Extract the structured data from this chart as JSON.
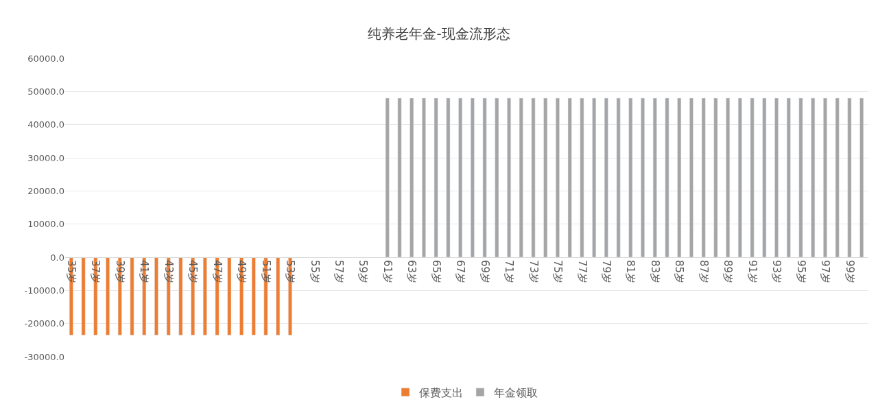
{
  "chart_data": {
    "type": "bar",
    "title": "纯养老年金-现金流形态",
    "categories": [
      "35岁",
      null,
      "37岁",
      null,
      "39岁",
      null,
      "41岁",
      null,
      "43岁",
      null,
      "45岁",
      null,
      "47岁",
      null,
      "49岁",
      null,
      "51岁",
      null,
      "53岁",
      null,
      "55岁",
      null,
      "57岁",
      null,
      "59岁",
      null,
      "61岁",
      null,
      "63岁",
      null,
      "65岁",
      null,
      "67岁",
      null,
      "69岁",
      null,
      "71岁",
      null,
      "73岁",
      null,
      "75岁",
      null,
      "77岁",
      null,
      "79岁",
      null,
      "81岁",
      null,
      "83岁",
      null,
      "85岁",
      null,
      "87岁",
      null,
      "89岁",
      null,
      "91岁",
      null,
      "93岁",
      null,
      "95岁",
      null,
      "97岁",
      null,
      "99岁",
      null
    ],
    "series": [
      {
        "name": "保费支出",
        "color": "#ed7d31",
        "values": [
          -23500,
          -23500,
          -23500,
          -23500,
          -23500,
          -23500,
          -23500,
          -23500,
          -23500,
          -23500,
          -23500,
          -23500,
          -23500,
          -23500,
          -23500,
          -23500,
          -23500,
          -23500,
          -23500,
          null,
          null,
          null,
          null,
          null,
          null,
          null,
          null,
          null,
          null,
          null,
          null,
          null,
          null,
          null,
          null,
          null,
          null,
          null,
          null,
          null,
          null,
          null,
          null,
          null,
          null,
          null,
          null,
          null,
          null,
          null,
          null,
          null,
          null,
          null,
          null,
          null,
          null,
          null,
          null,
          null,
          null,
          null,
          null,
          null,
          null,
          null
        ]
      },
      {
        "name": "年金领取",
        "color": "#a5a5a5",
        "values": [
          null,
          null,
          null,
          null,
          null,
          null,
          null,
          null,
          null,
          null,
          null,
          null,
          null,
          null,
          null,
          null,
          null,
          null,
          null,
          null,
          null,
          null,
          null,
          null,
          null,
          null,
          48000,
          48000,
          48000,
          48000,
          48000,
          48000,
          48000,
          48000,
          48000,
          48000,
          48000,
          48000,
          48000,
          48000,
          48000,
          48000,
          48000,
          48000,
          48000,
          48000,
          48000,
          48000,
          48000,
          48000,
          48000,
          48000,
          48000,
          48000,
          48000,
          48000,
          48000,
          48000,
          48000,
          48000,
          48000,
          48000,
          48000,
          48000,
          48000,
          48000
        ]
      }
    ],
    "ylim": [
      -30000,
      60000
    ],
    "yticks": [
      {
        "value": -30000,
        "label": "-30000.0"
      },
      {
        "value": -20000,
        "label": "-20000.0"
      },
      {
        "value": -10000,
        "label": "-10000.0"
      },
      {
        "value": 0,
        "label": "0.0"
      },
      {
        "value": 10000,
        "label": "10000.0"
      },
      {
        "value": 20000,
        "label": "20000.0"
      },
      {
        "value": 30000,
        "label": "30000.0"
      },
      {
        "value": 40000,
        "label": "40000.0"
      },
      {
        "value": 50000,
        "label": "50000.0"
      },
      {
        "value": 60000,
        "label": "60000.0"
      }
    ],
    "grid": "y",
    "legend": "bottom"
  }
}
